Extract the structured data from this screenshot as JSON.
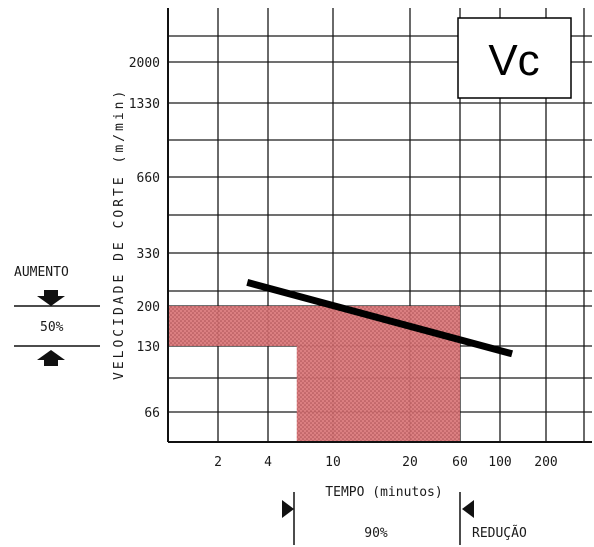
{
  "chart_data": {
    "type": "line",
    "title": "Vc",
    "xlabel": "TEMPO (minutos)",
    "ylabel": "VELOCIDADE DE CORTE (m/min)",
    "x_scale": "log",
    "y_scale": "log",
    "x_ticks": [
      2,
      4,
      10,
      20,
      60,
      100,
      200
    ],
    "y_ticks": [
      66,
      130,
      200,
      330,
      660,
      1330,
      2000
    ],
    "series": [
      {
        "x": [
          3,
          120
        ],
        "y": [
          250,
          120
        ]
      }
    ],
    "regions": [
      {
        "kind": "horizontal-band",
        "y": [
          130,
          200
        ],
        "x_to": 60,
        "color": "#d9787a"
      },
      {
        "kind": "vertical-band",
        "x": [
          6,
          60
        ],
        "y_to": 130,
        "color": "#d9787a"
      }
    ],
    "grid": true
  },
  "annotations": {
    "aumento": "AUMENTO",
    "aumento_pct": "50%",
    "reducao": "REDUÇÃO",
    "reducao_pct": "90%"
  }
}
